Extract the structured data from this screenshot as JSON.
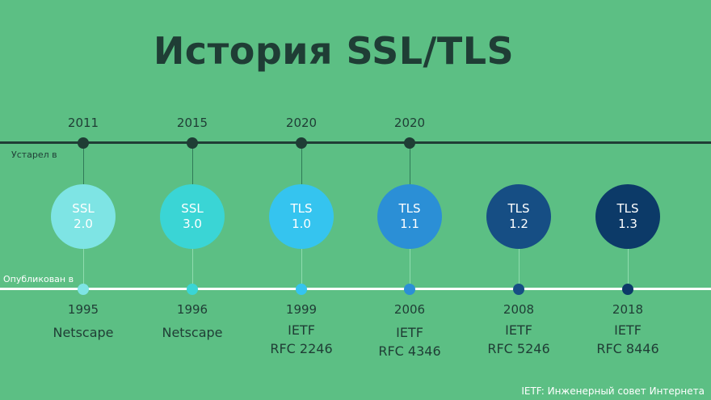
{
  "title": "История SSL/TLS",
  "deprecated_label": "Устарел в",
  "published_label": "Опубликован в",
  "footnote": "IETF: Инженерный совет Интернета",
  "versions": [
    {
      "line1": "SSL",
      "line2": "2.0",
      "published": "1995",
      "publisher_line1": "Netscape",
      "publisher_line2": "",
      "deprecated": "2011",
      "color": "#7ee4e4"
    },
    {
      "line1": "SSL",
      "line2": "3.0",
      "published": "1996",
      "publisher_line1": "Netscape",
      "publisher_line2": "",
      "deprecated": "2015",
      "color": "#3ad5d5"
    },
    {
      "line1": "TLS",
      "line2": "1.0",
      "published": "1999",
      "publisher_line1": "IETF",
      "publisher_line2": "RFC 2246",
      "deprecated": "2020",
      "color": "#35c4ef"
    },
    {
      "line1": "TLS",
      "line2": "1.1",
      "published": "2006",
      "publisher_line1": "IETF",
      "publisher_line2": "RFC 4346",
      "deprecated": "2020",
      "color": "#2b8fd6"
    },
    {
      "line1": "TLS",
      "line2": "1.2",
      "published": "2008",
      "publisher_line1": "IETF",
      "publisher_line2": "RFC 5246",
      "deprecated": "",
      "color": "#164e84"
    },
    {
      "line1": "TLS",
      "line2": "1.3",
      "published": "2018",
      "publisher_line1": "IETF",
      "publisher_line2": "RFC 8446",
      "deprecated": "",
      "color": "#0c3a68"
    }
  ]
}
